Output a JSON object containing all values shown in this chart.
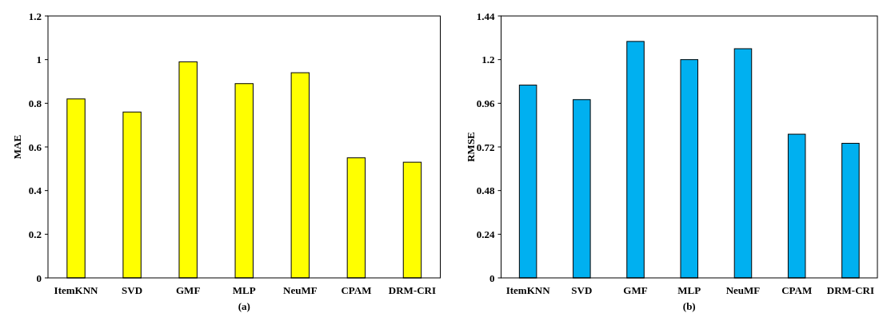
{
  "chart_data": [
    {
      "type": "bar",
      "xlabel": "(a)",
      "ylabel": "MAE",
      "categories": [
        "ItemKNN",
        "SVD",
        "GMF",
        "MLP",
        "NeuMF",
        "CPAM",
        "DRM-CRI"
      ],
      "values": [
        0.82,
        0.76,
        0.99,
        0.89,
        0.94,
        0.55,
        0.53
      ],
      "color": "#ffff00",
      "ylim": [
        0,
        1.2
      ],
      "yticks": [
        0,
        0.2,
        0.4,
        0.6,
        0.8,
        1,
        1.2
      ]
    },
    {
      "type": "bar",
      "xlabel": "(b)",
      "ylabel": "RMSE",
      "categories": [
        "ItemKNN",
        "SVD",
        "GMF",
        "MLP",
        "NeuMF",
        "CPAM",
        "DRM-CRI"
      ],
      "values": [
        1.06,
        0.98,
        1.3,
        1.2,
        1.26,
        0.79,
        0.74
      ],
      "color": "#00b0f0",
      "ylim": [
        0,
        1.44
      ],
      "yticks": [
        0,
        0.24,
        0.48,
        0.72,
        0.96,
        1.2,
        1.44
      ]
    }
  ]
}
